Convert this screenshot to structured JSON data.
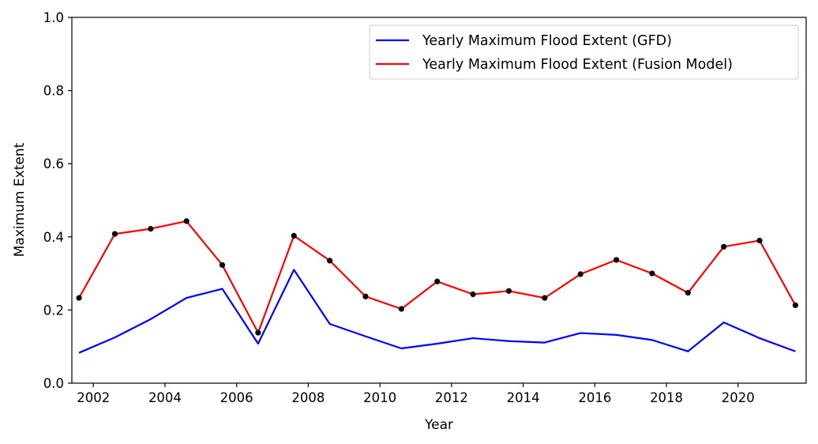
{
  "chart_data": {
    "type": "line",
    "title": "",
    "xlabel": "Year",
    "ylabel": "Maximum Extent",
    "xlim": [
      2001.4,
      2021.9
    ],
    "ylim": [
      0,
      1.0
    ],
    "xticks": [
      2002,
      2004,
      2006,
      2008,
      2010,
      2012,
      2014,
      2016,
      2018,
      2020
    ],
    "yticks": [
      0.0,
      0.2,
      0.4,
      0.6,
      0.8,
      1.0
    ],
    "ytick_labels": [
      "0.0",
      "0.2",
      "0.4",
      "0.6",
      "0.8",
      "1.0"
    ],
    "grid": false,
    "legend_position": "top-right",
    "series": [
      {
        "name": "Yearly Maximum Flood Extent (GFD)",
        "color": "#0000ff",
        "markers": false,
        "points": [
          {
            "x": 2001.6,
            "y": 0.083
          },
          {
            "x": 2002.6,
            "y": 0.125
          },
          {
            "x": 2003.6,
            "y": 0.175
          },
          {
            "x": 2004.6,
            "y": 0.233
          },
          {
            "x": 2005.6,
            "y": 0.258
          },
          {
            "x": 2006.6,
            "y": 0.108
          },
          {
            "x": 2007.6,
            "y": 0.31
          },
          {
            "x": 2008.6,
            "y": 0.162
          },
          {
            "x": 2009.6,
            "y": 0.128
          },
          {
            "x": 2010.6,
            "y": 0.095
          },
          {
            "x": 2011.6,
            "y": 0.108
          },
          {
            "x": 2012.6,
            "y": 0.123
          },
          {
            "x": 2013.6,
            "y": 0.115
          },
          {
            "x": 2014.6,
            "y": 0.111
          },
          {
            "x": 2015.6,
            "y": 0.137
          },
          {
            "x": 2016.6,
            "y": 0.132
          },
          {
            "x": 2017.6,
            "y": 0.118
          },
          {
            "x": 2018.6,
            "y": 0.087
          },
          {
            "x": 2019.6,
            "y": 0.166
          },
          {
            "x": 2020.6,
            "y": 0.123
          },
          {
            "x": 2021.6,
            "y": 0.087
          }
        ]
      },
      {
        "name": "Yearly Maximum Flood Extent (Fusion Model)",
        "color": "#ff0000",
        "markers": true,
        "marker_color": "#000000",
        "points": [
          {
            "x": 2001.6,
            "y": 0.233
          },
          {
            "x": 2002.6,
            "y": 0.408
          },
          {
            "x": 2003.6,
            "y": 0.422
          },
          {
            "x": 2004.6,
            "y": 0.443
          },
          {
            "x": 2005.6,
            "y": 0.323
          },
          {
            "x": 2006.6,
            "y": 0.138
          },
          {
            "x": 2007.6,
            "y": 0.403
          },
          {
            "x": 2008.6,
            "y": 0.335
          },
          {
            "x": 2009.6,
            "y": 0.237
          },
          {
            "x": 2010.6,
            "y": 0.203
          },
          {
            "x": 2011.6,
            "y": 0.278
          },
          {
            "x": 2012.6,
            "y": 0.243
          },
          {
            "x": 2013.6,
            "y": 0.252
          },
          {
            "x": 2014.6,
            "y": 0.233
          },
          {
            "x": 2015.6,
            "y": 0.298
          },
          {
            "x": 2016.6,
            "y": 0.337
          },
          {
            "x": 2017.6,
            "y": 0.3
          },
          {
            "x": 2018.6,
            "y": 0.247
          },
          {
            "x": 2019.6,
            "y": 0.373
          },
          {
            "x": 2020.6,
            "y": 0.39
          },
          {
            "x": 2021.6,
            "y": 0.213
          }
        ]
      }
    ]
  }
}
